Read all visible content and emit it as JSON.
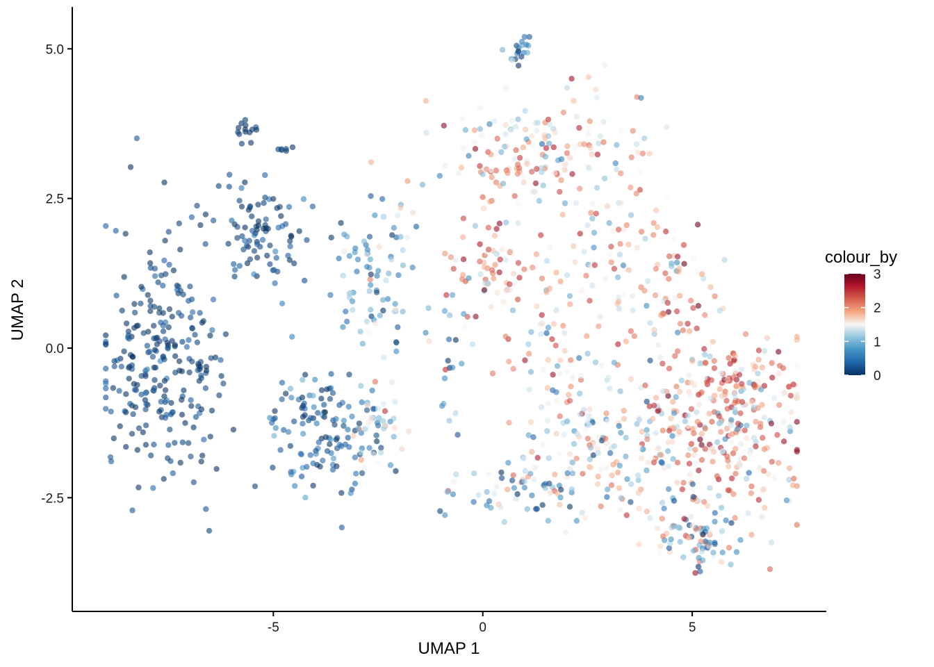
{
  "chart_data": {
    "type": "scatter",
    "title": "",
    "xlabel": "UMAP 1",
    "ylabel": "UMAP 2",
    "xlim": [
      -9.8,
      8.2
    ],
    "ylim": [
      -4.4,
      5.7
    ],
    "x_ticks": [
      -5,
      0,
      5
    ],
    "x_tick_labels": [
      "-5",
      "0",
      "5"
    ],
    "y_ticks": [
      -2.5,
      0,
      2.5,
      5
    ],
    "y_tick_labels": [
      "-2.5",
      "0.0",
      "2.5",
      "5.0"
    ],
    "grid": false,
    "legend": {
      "title": "colour_by",
      "placement": "right",
      "min": 0,
      "max": 3,
      "ticks": [
        0,
        1,
        2,
        3
      ],
      "tick_labels": [
        "0",
        "1",
        "2",
        "3"
      ],
      "colors": [
        "#053061",
        "#2166ac",
        "#4393c3",
        "#92c5de",
        "#f7f7f7",
        "#f4a582",
        "#d6604d",
        "#b2182b",
        "#67001f"
      ]
    },
    "point_opacity": 0.6,
    "point_count_note": "",
    "clusters": [
      {
        "cx": -7.6,
        "cy": -0.2,
        "sx": 0.75,
        "sy": 1.15,
        "n": 260,
        "v": 0.12,
        "vs": 0.18
      },
      {
        "cx": -5.2,
        "cy": 1.9,
        "sx": 0.6,
        "sy": 0.45,
        "n": 90,
        "v": 0.18,
        "vs": 0.25
      },
      {
        "cx": -3.7,
        "cy": -1.4,
        "sx": 0.7,
        "sy": 0.55,
        "n": 130,
        "v": 0.3,
        "vs": 0.3
      },
      {
        "cx": -5.6,
        "cy": 3.65,
        "sx": 0.12,
        "sy": 0.12,
        "n": 14,
        "v": 0.05,
        "vs": 0.05
      },
      {
        "cx": -4.8,
        "cy": 3.4,
        "sx": 0.15,
        "sy": 0.08,
        "n": 6,
        "v": 0.1,
        "vs": 0.05
      },
      {
        "cx": -2.6,
        "cy": 1.3,
        "sx": 0.45,
        "sy": 0.7,
        "n": 80,
        "v": 0.8,
        "vs": 0.55
      },
      {
        "cx": -2.5,
        "cy": -1.2,
        "sx": 0.3,
        "sy": 0.4,
        "n": 40,
        "v": 1.4,
        "vs": 0.4
      },
      {
        "cx": 0.8,
        "cy": 5.0,
        "sx": 0.18,
        "sy": 0.15,
        "n": 18,
        "v": 0.4,
        "vs": 0.35
      },
      {
        "cx": 1.3,
        "cy": 3.2,
        "sx": 1.2,
        "sy": 0.55,
        "n": 170,
        "v": 1.7,
        "vs": 0.5
      },
      {
        "cx": 0.1,
        "cy": 1.4,
        "sx": 0.55,
        "sy": 0.45,
        "n": 60,
        "v": 2.0,
        "vs": 0.5
      },
      {
        "cx": 2.9,
        "cy": 1.5,
        "sx": 0.6,
        "sy": 0.9,
        "n": 60,
        "v": 1.6,
        "vs": 0.5
      },
      {
        "cx": 1.5,
        "cy": 0.2,
        "sx": 0.6,
        "sy": 0.6,
        "n": 45,
        "v": 1.7,
        "vs": 0.6
      },
      {
        "cx": 4.4,
        "cy": 0.9,
        "sx": 0.6,
        "sy": 0.6,
        "n": 60,
        "v": 1.9,
        "vs": 0.5
      },
      {
        "cx": 5.8,
        "cy": -1.2,
        "sx": 0.95,
        "sy": 0.95,
        "n": 310,
        "v": 1.9,
        "vs": 0.55
      },
      {
        "cx": 3.0,
        "cy": -1.5,
        "sx": 1.2,
        "sy": 0.6,
        "n": 170,
        "v": 1.4,
        "vs": 0.55
      },
      {
        "cx": 1.3,
        "cy": -2.4,
        "sx": 1.0,
        "sy": 0.3,
        "n": 70,
        "v": 1.1,
        "vs": 0.55
      },
      {
        "cx": 5.0,
        "cy": -3.1,
        "sx": 0.6,
        "sy": 0.35,
        "n": 80,
        "v": 1.2,
        "vs": 0.6
      },
      {
        "cx": -0.8,
        "cy": 0.0,
        "sx": 0.3,
        "sy": 0.8,
        "n": 25,
        "v": 1.1,
        "vs": 0.6
      }
    ]
  }
}
